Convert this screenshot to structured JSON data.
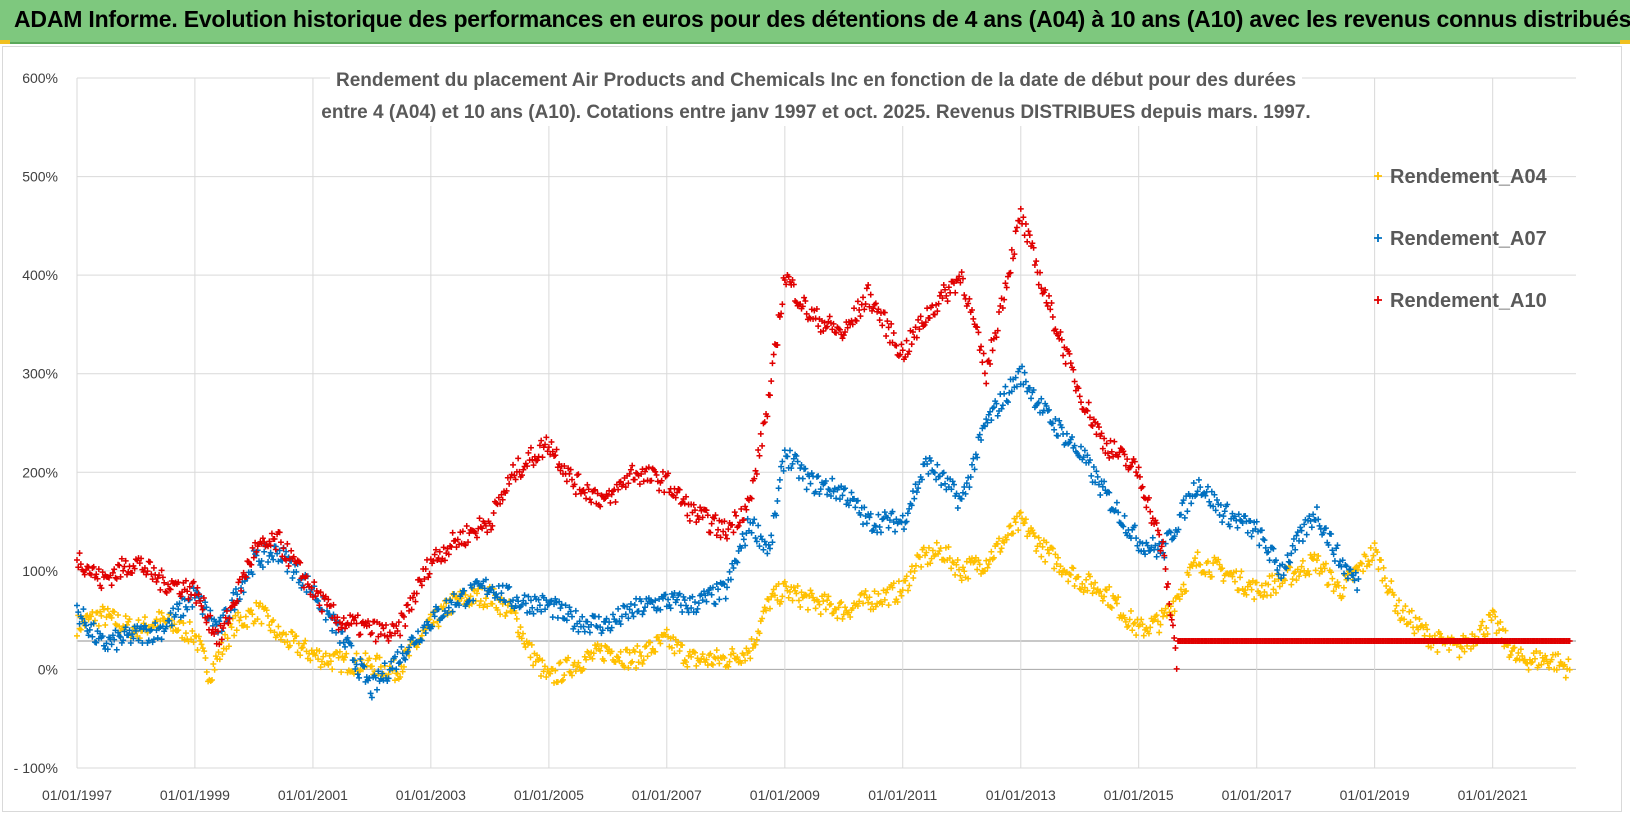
{
  "banner": {
    "title": "ADAM Informe. Evolution historique des performances en euros pour des détentions de 4 ans (A04) à 10 ans (A10) avec les revenus connus distribués"
  },
  "colors": {
    "banner_bg": "#7ec87e",
    "a04": "#ffc000",
    "a07": "#0070c0",
    "a10": "#e00000",
    "grid": "#d9d9d9",
    "axis_text": "#404040"
  },
  "chart_data": {
    "type": "scatter",
    "title_line1": "Rendement du placement Air Products and Chemicals Inc en fonction de la date de début pour des durées",
    "title_line2": "entre 4 (A04) et 10 ans (A10).  Cotations entre janv 1997 et oct. 2025.  Revenus DISTRIBUES depuis mars. 1997.",
    "xlabel": "",
    "ylabel": "",
    "x_range": [
      "1997-01-01",
      "2022-06-01"
    ],
    "y_range_pct": [
      -100,
      600
    ],
    "y_ticks": [
      -100,
      0,
      100,
      200,
      300,
      400,
      500,
      600
    ],
    "y_tick_labels": [
      "- 100%",
      "0%",
      "100%",
      "200%",
      "300%",
      "400%",
      "500%",
      "600%"
    ],
    "x_ticks": [
      "1997-01-01",
      "1999-01-01",
      "2001-01-01",
      "2003-01-01",
      "2005-01-01",
      "2007-01-01",
      "2009-01-01",
      "2011-01-01",
      "2013-01-01",
      "2015-01-01",
      "2017-01-01",
      "2019-01-01",
      "2021-01-01"
    ],
    "x_tick_labels": [
      "01/01/1997",
      "01/01/1999",
      "01/01/2001",
      "01/01/2003",
      "01/01/2005",
      "01/01/2007",
      "01/01/2009",
      "01/01/2011",
      "01/01/2013",
      "01/01/2015",
      "01/01/2017",
      "01/01/2019",
      "01/01/2021"
    ],
    "grid": true,
    "legend_position": "right",
    "marker": "+",
    "series": [
      {
        "name": "Rendement_A04",
        "color": "#ffc000",
        "points": [
          [
            "1997-01-01",
            45
          ],
          [
            "1997-06-01",
            55
          ],
          [
            "1998-01-01",
            40
          ],
          [
            "1998-06-01",
            50
          ],
          [
            "1999-01-01",
            35
          ],
          [
            "1999-04-01",
            -5
          ],
          [
            "1999-09-01",
            45
          ],
          [
            "2000-02-01",
            60
          ],
          [
            "2000-06-01",
            35
          ],
          [
            "2001-01-01",
            15
          ],
          [
            "2001-06-01",
            8
          ],
          [
            "2002-01-01",
            5
          ],
          [
            "2002-06-01",
            -2
          ],
          [
            "2003-01-01",
            45
          ],
          [
            "2003-06-01",
            70
          ],
          [
            "2004-01-01",
            75
          ],
          [
            "2004-06-01",
            55
          ],
          [
            "2004-09-01",
            20
          ],
          [
            "2005-01-01",
            -10
          ],
          [
            "2005-06-01",
            5
          ],
          [
            "2006-01-01",
            20
          ],
          [
            "2006-06-01",
            10
          ],
          [
            "2007-01-01",
            30
          ],
          [
            "2007-06-01",
            10
          ],
          [
            "2008-01-01",
            10
          ],
          [
            "2008-06-01",
            20
          ],
          [
            "2008-10-01",
            70
          ],
          [
            "2009-01-01",
            80
          ],
          [
            "2009-06-01",
            70
          ],
          [
            "2010-01-01",
            60
          ],
          [
            "2010-06-01",
            70
          ],
          [
            "2011-01-01",
            80
          ],
          [
            "2011-04-01",
            110
          ],
          [
            "2011-09-01",
            120
          ],
          [
            "2012-01-01",
            100
          ],
          [
            "2012-06-01",
            110
          ],
          [
            "2013-01-01",
            150
          ],
          [
            "2013-06-01",
            120
          ],
          [
            "2014-01-01",
            90
          ],
          [
            "2014-06-01",
            80
          ],
          [
            "2015-01-01",
            40
          ],
          [
            "2015-06-01",
            50
          ],
          [
            "2016-01-01",
            110
          ],
          [
            "2016-06-01",
            100
          ],
          [
            "2017-01-01",
            80
          ],
          [
            "2017-06-01",
            90
          ],
          [
            "2018-01-01",
            110
          ],
          [
            "2018-06-01",
            80
          ],
          [
            "2019-01-01",
            120
          ],
          [
            "2019-06-01",
            60
          ],
          [
            "2020-01-01",
            30
          ],
          [
            "2020-06-01",
            20
          ],
          [
            "2021-01-01",
            50
          ],
          [
            "2021-06-01",
            10
          ],
          [
            "2022-01-01",
            10
          ],
          [
            "2022-05-01",
            0
          ]
        ]
      },
      {
        "name": "Rendement_A07",
        "color": "#0070c0",
        "points": [
          [
            "1997-01-01",
            60
          ],
          [
            "1997-06-01",
            25
          ],
          [
            "1998-01-01",
            35
          ],
          [
            "1998-06-01",
            40
          ],
          [
            "1999-01-01",
            75
          ],
          [
            "1999-06-01",
            40
          ],
          [
            "2000-01-01",
            110
          ],
          [
            "2000-06-01",
            120
          ],
          [
            "2001-01-01",
            80
          ],
          [
            "2001-06-01",
            40
          ],
          [
            "2002-01-01",
            -20
          ],
          [
            "2002-06-01",
            10
          ],
          [
            "2003-01-01",
            50
          ],
          [
            "2003-06-01",
            70
          ],
          [
            "2004-01-01",
            85
          ],
          [
            "2004-06-01",
            70
          ],
          [
            "2005-01-01",
            65
          ],
          [
            "2005-06-01",
            50
          ],
          [
            "2006-01-01",
            45
          ],
          [
            "2006-06-01",
            60
          ],
          [
            "2007-01-01",
            70
          ],
          [
            "2007-06-01",
            65
          ],
          [
            "2008-01-01",
            80
          ],
          [
            "2008-06-01",
            150
          ],
          [
            "2008-10-01",
            120
          ],
          [
            "2009-01-01",
            220
          ],
          [
            "2009-06-01",
            190
          ],
          [
            "2010-01-01",
            180
          ],
          [
            "2010-06-01",
            150
          ],
          [
            "2011-01-01",
            150
          ],
          [
            "2011-06-01",
            210
          ],
          [
            "2012-01-01",
            170
          ],
          [
            "2012-06-01",
            250
          ],
          [
            "2013-01-01",
            300
          ],
          [
            "2013-06-01",
            260
          ],
          [
            "2014-01-01",
            220
          ],
          [
            "2014-06-01",
            180
          ],
          [
            "2015-01-01",
            130
          ],
          [
            "2015-06-01",
            120
          ],
          [
            "2016-01-01",
            190
          ],
          [
            "2016-06-01",
            160
          ],
          [
            "2017-01-01",
            140
          ],
          [
            "2017-06-01",
            100
          ],
          [
            "2018-01-01",
            160
          ],
          [
            "2018-06-01",
            110
          ],
          [
            "2018-10-01",
            85
          ]
        ]
      },
      {
        "name": "Rendement_A10",
        "color": "#e00000",
        "points": [
          [
            "1997-01-01",
            115
          ],
          [
            "1997-06-01",
            90
          ],
          [
            "1998-01-01",
            110
          ],
          [
            "1998-06-01",
            90
          ],
          [
            "1999-01-01",
            80
          ],
          [
            "1999-06-01",
            30
          ],
          [
            "2000-01-01",
            120
          ],
          [
            "2000-06-01",
            130
          ],
          [
            "2001-01-01",
            80
          ],
          [
            "2001-06-01",
            50
          ],
          [
            "2002-01-01",
            40
          ],
          [
            "2002-06-01",
            35
          ],
          [
            "2003-01-01",
            110
          ],
          [
            "2003-06-01",
            130
          ],
          [
            "2004-01-01",
            150
          ],
          [
            "2004-06-01",
            200
          ],
          [
            "2005-01-01",
            230
          ],
          [
            "2005-06-01",
            190
          ],
          [
            "2006-01-01",
            170
          ],
          [
            "2006-06-01",
            200
          ],
          [
            "2007-01-01",
            190
          ],
          [
            "2007-06-01",
            160
          ],
          [
            "2008-01-01",
            140
          ],
          [
            "2008-06-01",
            170
          ],
          [
            "2008-10-01",
            280
          ],
          [
            "2009-01-01",
            400
          ],
          [
            "2009-06-01",
            360
          ],
          [
            "2010-01-01",
            340
          ],
          [
            "2010-06-01",
            380
          ],
          [
            "2011-01-01",
            320
          ],
          [
            "2011-06-01",
            360
          ],
          [
            "2012-01-01",
            400
          ],
          [
            "2012-06-01",
            300
          ],
          [
            "2013-01-01",
            460
          ],
          [
            "2013-06-01",
            380
          ],
          [
            "2014-01-01",
            280
          ],
          [
            "2014-06-01",
            230
          ],
          [
            "2015-01-01",
            200
          ],
          [
            "2015-06-01",
            120
          ],
          [
            "2015-09-01",
            0
          ],
          [
            "2016-06-01",
            0
          ],
          [
            "2017-06-01",
            0
          ],
          [
            "2018-06-01",
            0
          ],
          [
            "2019-06-01",
            0
          ],
          [
            "2020-06-01",
            0
          ],
          [
            "2021-06-01",
            0
          ],
          [
            "2022-05-01",
            0
          ]
        ]
      }
    ]
  }
}
